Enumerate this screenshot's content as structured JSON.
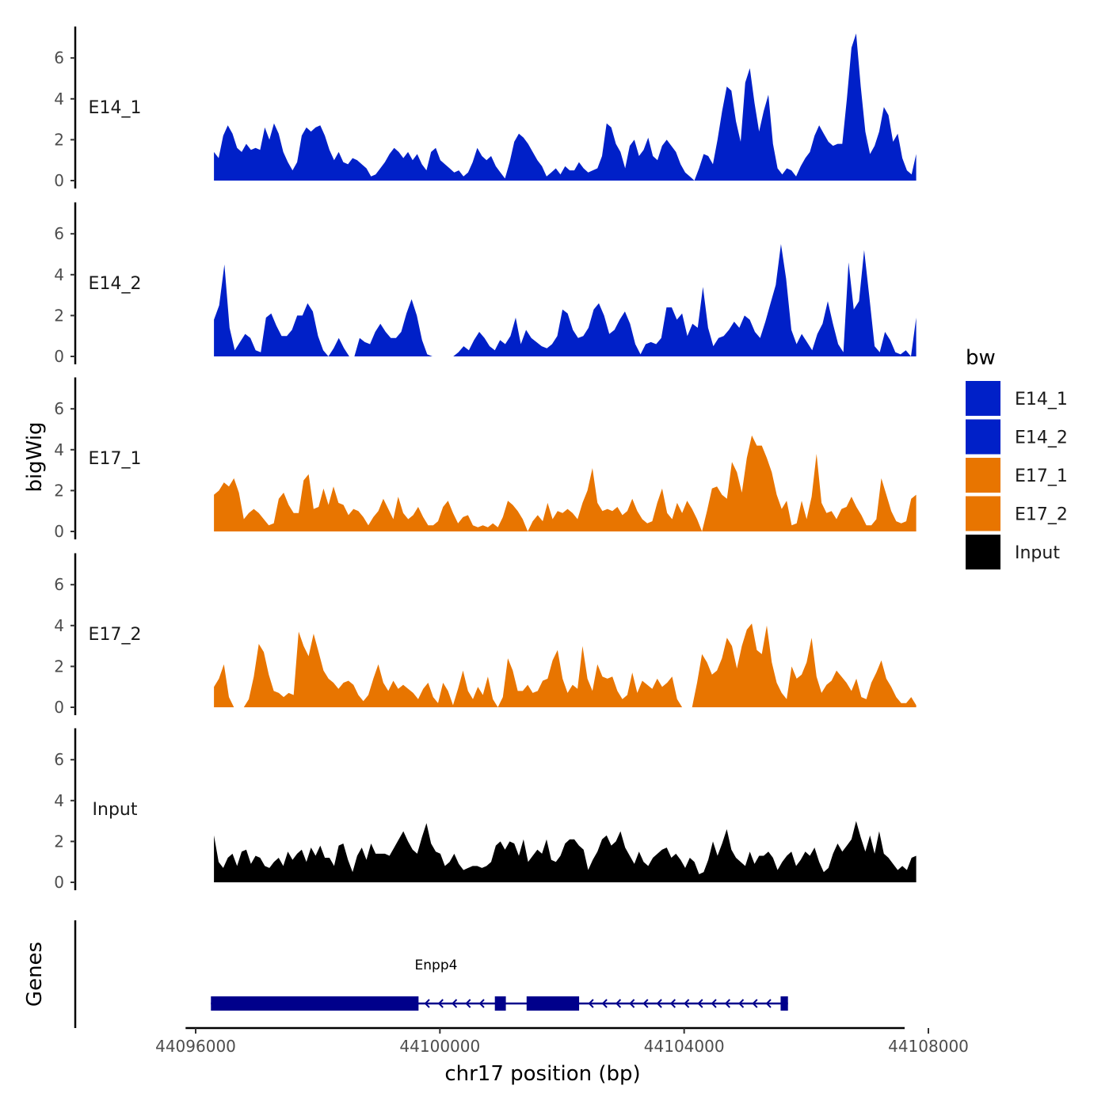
{
  "chart_data": {
    "type": "area",
    "title": "",
    "xlabel": "chr17 position (bp)",
    "ylabel": "bigWig",
    "gene_track_label": "Genes",
    "x_range": [
      44096300,
      44107800
    ],
    "x_axis_lim": [
      44095900,
      44108000
    ],
    "x_ticks": [
      44096000,
      44100000,
      44104000,
      44108000
    ],
    "x_tick_labels": [
      "44096000",
      "44100000",
      "44104000",
      "44108000"
    ],
    "y_range": [
      0,
      7.5
    ],
    "y_ticks": [
      0,
      2,
      4,
      6
    ],
    "y_tick_labels": [
      "0",
      "2",
      "4",
      "6"
    ],
    "legend": {
      "title": "bw",
      "entries": [
        {
          "label": "E14_1",
          "color": "#0020c8"
        },
        {
          "label": "E14_2",
          "color": "#0020c8"
        },
        {
          "label": "E17_1",
          "color": "#e87500"
        },
        {
          "label": "E17_2",
          "color": "#e87500"
        },
        {
          "label": "Input",
          "color": "#000000"
        }
      ]
    },
    "series": [
      {
        "name": "E14_1",
        "color": "#0020c8",
        "values": [
          1.4,
          1.1,
          2.2,
          2.7,
          2.3,
          1.6,
          1.4,
          1.8,
          1.5,
          1.6,
          1.5,
          2.6,
          2.0,
          2.8,
          2.3,
          1.4,
          0.9,
          0.5,
          0.9,
          2.2,
          2.6,
          2.4,
          2.6,
          2.7,
          2.2,
          1.5,
          1.0,
          1.4,
          0.9,
          0.8,
          1.1,
          1.0,
          0.8,
          0.6,
          0.2,
          0.3,
          0.6,
          0.9,
          1.3,
          1.6,
          1.4,
          1.1,
          1.4,
          1.0,
          1.3,
          0.8,
          0.5,
          1.4,
          1.6,
          1.0,
          0.8,
          0.6,
          0.4,
          0.5,
          0.2,
          0.4,
          0.9,
          1.6,
          1.2,
          1.0,
          1.2,
          0.7,
          0.4,
          0.1,
          0.9,
          1.9,
          2.3,
          2.1,
          1.8,
          1.4,
          1.0,
          0.7,
          0.2,
          0.4,
          0.6,
          0.3,
          0.7,
          0.5,
          0.5,
          0.9,
          0.6,
          0.4,
          0.5,
          0.6,
          1.2,
          2.8,
          2.6,
          1.8,
          1.4,
          0.6,
          1.7,
          2.0,
          1.2,
          1.5,
          2.1,
          1.2,
          1.0,
          1.7,
          2.0,
          1.7,
          1.4,
          0.8,
          0.4,
          0.2,
          0.0,
          0.6,
          1.3,
          1.2,
          0.8,
          2.0,
          3.4,
          4.6,
          4.4,
          2.9,
          1.9,
          4.8,
          5.5,
          3.8,
          2.4,
          3.4,
          4.2,
          1.8,
          0.6,
          0.3,
          0.6,
          0.5,
          0.2,
          0.7,
          1.1,
          1.4,
          2.2,
          2.7,
          2.3,
          1.9,
          1.7,
          1.8,
          1.8,
          4.0,
          6.5,
          7.2,
          4.6,
          2.4,
          1.3,
          1.7,
          2.4,
          3.6,
          3.2,
          1.9,
          2.3,
          1.1,
          0.5,
          0.3,
          1.3
        ],
        "label_y_value": 3.6
      },
      {
        "name": "E14_2",
        "color": "#0020c8",
        "values": [
          1.8,
          2.5,
          4.5,
          1.4,
          0.3,
          0.7,
          1.1,
          0.9,
          0.3,
          0.2,
          1.9,
          2.1,
          1.5,
          1.0,
          1.0,
          1.3,
          2.0,
          2.0,
          2.6,
          2.2,
          1.0,
          0.3,
          0.0,
          0.4,
          0.9,
          0.4,
          0.0,
          0.0,
          0.9,
          0.7,
          0.6,
          1.2,
          1.6,
          1.2,
          0.9,
          0.9,
          1.2,
          2.1,
          2.8,
          2.0,
          0.8,
          0.1,
          0.0,
          0.0,
          0.0,
          0.0,
          0.0,
          0.2,
          0.5,
          0.3,
          0.8,
          1.2,
          0.9,
          0.5,
          0.3,
          0.8,
          0.6,
          1.0,
          1.9,
          0.6,
          1.3,
          0.9,
          0.7,
          0.5,
          0.4,
          0.6,
          1.0,
          2.3,
          2.1,
          1.3,
          0.9,
          1.0,
          1.4,
          2.3,
          2.6,
          2.0,
          1.1,
          1.3,
          1.8,
          2.2,
          1.6,
          0.6,
          0.1,
          0.6,
          0.7,
          0.6,
          0.9,
          2.4,
          2.4,
          1.8,
          2.1,
          1.0,
          1.6,
          1.4,
          3.4,
          1.4,
          0.5,
          0.9,
          1.0,
          1.3,
          1.7,
          1.4,
          2.0,
          1.8,
          1.2,
          0.9,
          1.7,
          2.6,
          3.5,
          5.5,
          3.8,
          1.3,
          0.6,
          1.1,
          0.7,
          0.3,
          1.1,
          1.6,
          2.7,
          1.6,
          0.6,
          0.2,
          4.6,
          2.3,
          2.7,
          5.2,
          2.9,
          0.5,
          0.2,
          1.2,
          0.8,
          0.2,
          0.1,
          0.3,
          0.0,
          1.9
        ],
        "label_y_value": 3.6
      },
      {
        "name": "E17_1",
        "color": "#e87500",
        "values": [
          1.8,
          2.0,
          2.4,
          2.2,
          2.6,
          1.9,
          0.6,
          0.9,
          1.1,
          0.9,
          0.6,
          0.3,
          0.4,
          1.6,
          1.9,
          1.3,
          0.9,
          0.9,
          2.5,
          2.8,
          1.1,
          1.2,
          2.1,
          1.3,
          2.2,
          1.4,
          1.3,
          0.8,
          1.1,
          1.0,
          0.7,
          0.3,
          0.7,
          1.0,
          1.6,
          1.1,
          0.6,
          1.7,
          0.9,
          0.6,
          0.8,
          1.2,
          0.7,
          0.3,
          0.3,
          0.5,
          1.2,
          1.5,
          0.9,
          0.4,
          0.7,
          0.8,
          0.3,
          0.2,
          0.3,
          0.2,
          0.4,
          0.2,
          0.7,
          1.5,
          1.3,
          1.0,
          0.6,
          0.0,
          0.5,
          0.8,
          0.5,
          1.4,
          0.6,
          1.0,
          0.9,
          1.1,
          0.9,
          0.6,
          1.4,
          2.0,
          3.1,
          1.4,
          1.0,
          1.1,
          1.0,
          1.2,
          0.8,
          1.0,
          1.6,
          1.0,
          0.6,
          0.4,
          0.5,
          1.4,
          2.1,
          0.9,
          0.6,
          1.4,
          0.9,
          1.5,
          1.1,
          0.6,
          0.0,
          1.0,
          2.1,
          2.2,
          1.8,
          1.6,
          3.4,
          2.9,
          1.9,
          3.6,
          4.7,
          4.2,
          4.2,
          3.6,
          2.9,
          1.8,
          1.1,
          1.5,
          0.3,
          0.4,
          1.5,
          0.6,
          1.7,
          3.8,
          1.4,
          0.9,
          1.0,
          0.6,
          1.1,
          1.2,
          1.7,
          1.2,
          0.8,
          0.3,
          0.3,
          0.6,
          2.6,
          1.8,
          1.0,
          0.5,
          0.4,
          0.5,
          1.6,
          1.8
        ],
        "label_y_value": 3.6
      },
      {
        "name": "E17_2",
        "color": "#e87500",
        "values": [
          1.0,
          1.4,
          2.1,
          0.5,
          0.0,
          0.0,
          0.0,
          0.4,
          1.5,
          3.1,
          2.7,
          1.6,
          0.8,
          0.7,
          0.5,
          0.7,
          0.6,
          3.7,
          3.0,
          2.5,
          3.6,
          2.7,
          1.8,
          1.4,
          1.2,
          0.9,
          1.2,
          1.3,
          1.1,
          0.6,
          0.3,
          0.6,
          1.4,
          2.1,
          1.2,
          0.8,
          1.3,
          0.9,
          1.1,
          0.9,
          0.7,
          0.4,
          0.9,
          1.2,
          0.5,
          0.2,
          1.2,
          0.8,
          0.1,
          0.9,
          1.8,
          0.8,
          0.4,
          1.0,
          0.6,
          1.5,
          0.4,
          0.0,
          0.5,
          2.4,
          1.8,
          0.8,
          0.8,
          1.1,
          0.7,
          0.8,
          1.3,
          1.4,
          2.3,
          2.8,
          1.4,
          0.7,
          1.1,
          0.9,
          3.0,
          1.4,
          0.8,
          2.1,
          1.5,
          1.4,
          1.5,
          0.8,
          0.4,
          0.6,
          1.7,
          0.7,
          1.3,
          1.1,
          0.9,
          1.4,
          1.0,
          1.2,
          1.5,
          0.4,
          0.0,
          0.0,
          0.0,
          1.2,
          2.6,
          2.2,
          1.6,
          1.8,
          2.4,
          3.4,
          3.0,
          1.9,
          3.0,
          3.8,
          4.1,
          2.8,
          2.6,
          4.0,
          2.2,
          1.2,
          0.7,
          0.4,
          2.0,
          1.4,
          1.6,
          2.2,
          3.4,
          1.5,
          0.7,
          1.1,
          1.3,
          1.8,
          1.5,
          1.2,
          0.8,
          1.4,
          0.5,
          0.4,
          1.2,
          1.7,
          2.3,
          1.4,
          1.0,
          0.5,
          0.2,
          0.2,
          0.5,
          0.1
        ],
        "label_y_value": 3.6
      },
      {
        "name": "Input",
        "color": "#000000",
        "values": [
          2.3,
          1.0,
          0.7,
          1.2,
          1.4,
          0.8,
          1.5,
          1.6,
          0.9,
          1.3,
          1.2,
          0.8,
          0.7,
          1.0,
          1.2,
          0.8,
          1.5,
          1.1,
          1.4,
          1.6,
          1.0,
          1.7,
          1.3,
          1.8,
          1.2,
          1.2,
          0.8,
          1.8,
          1.9,
          1.1,
          0.5,
          1.3,
          1.7,
          1.1,
          1.9,
          1.4,
          1.4,
          1.4,
          1.3,
          1.7,
          2.1,
          2.5,
          2.0,
          1.6,
          1.4,
          2.2,
          2.9,
          1.9,
          1.5,
          1.4,
          0.8,
          1.0,
          1.4,
          0.9,
          0.6,
          0.7,
          0.8,
          0.8,
          0.7,
          0.8,
          1.0,
          1.8,
          2.0,
          1.6,
          2.0,
          1.9,
          1.3,
          2.1,
          1.0,
          1.3,
          1.6,
          1.4,
          2.1,
          1.1,
          1.0,
          1.3,
          1.9,
          2.1,
          2.1,
          1.8,
          1.6,
          0.6,
          1.1,
          1.5,
          2.1,
          2.3,
          1.8,
          2.0,
          2.5,
          1.7,
          1.3,
          0.9,
          1.5,
          1.0,
          0.8,
          1.2,
          1.4,
          1.6,
          1.7,
          1.2,
          1.4,
          1.1,
          0.7,
          1.2,
          1.0,
          0.4,
          0.5,
          1.1,
          2.0,
          1.3,
          1.9,
          2.6,
          1.6,
          1.2,
          1.0,
          0.8,
          1.5,
          0.9,
          1.3,
          1.3,
          1.5,
          1.2,
          0.6,
          1.0,
          1.3,
          1.5,
          0.8,
          1.1,
          1.5,
          1.3,
          1.7,
          1.0,
          0.5,
          0.7,
          1.4,
          1.9,
          1.5,
          1.8,
          2.1,
          3.0,
          2.2,
          1.5,
          2.3,
          1.4,
          2.5,
          1.4,
          1.2,
          0.9,
          0.6,
          0.8,
          0.6,
          1.2,
          1.3
        ],
        "label_y_value": 3.6
      }
    ],
    "gene": {
      "name": "Enpp4",
      "strand": "-",
      "start": 44096250,
      "end": 44105700,
      "exons": [
        [
          44096250,
          44099650
        ],
        [
          44100900,
          44101080
        ],
        [
          44101420,
          44102280
        ],
        [
          44105580,
          44105700
        ]
      ]
    }
  }
}
